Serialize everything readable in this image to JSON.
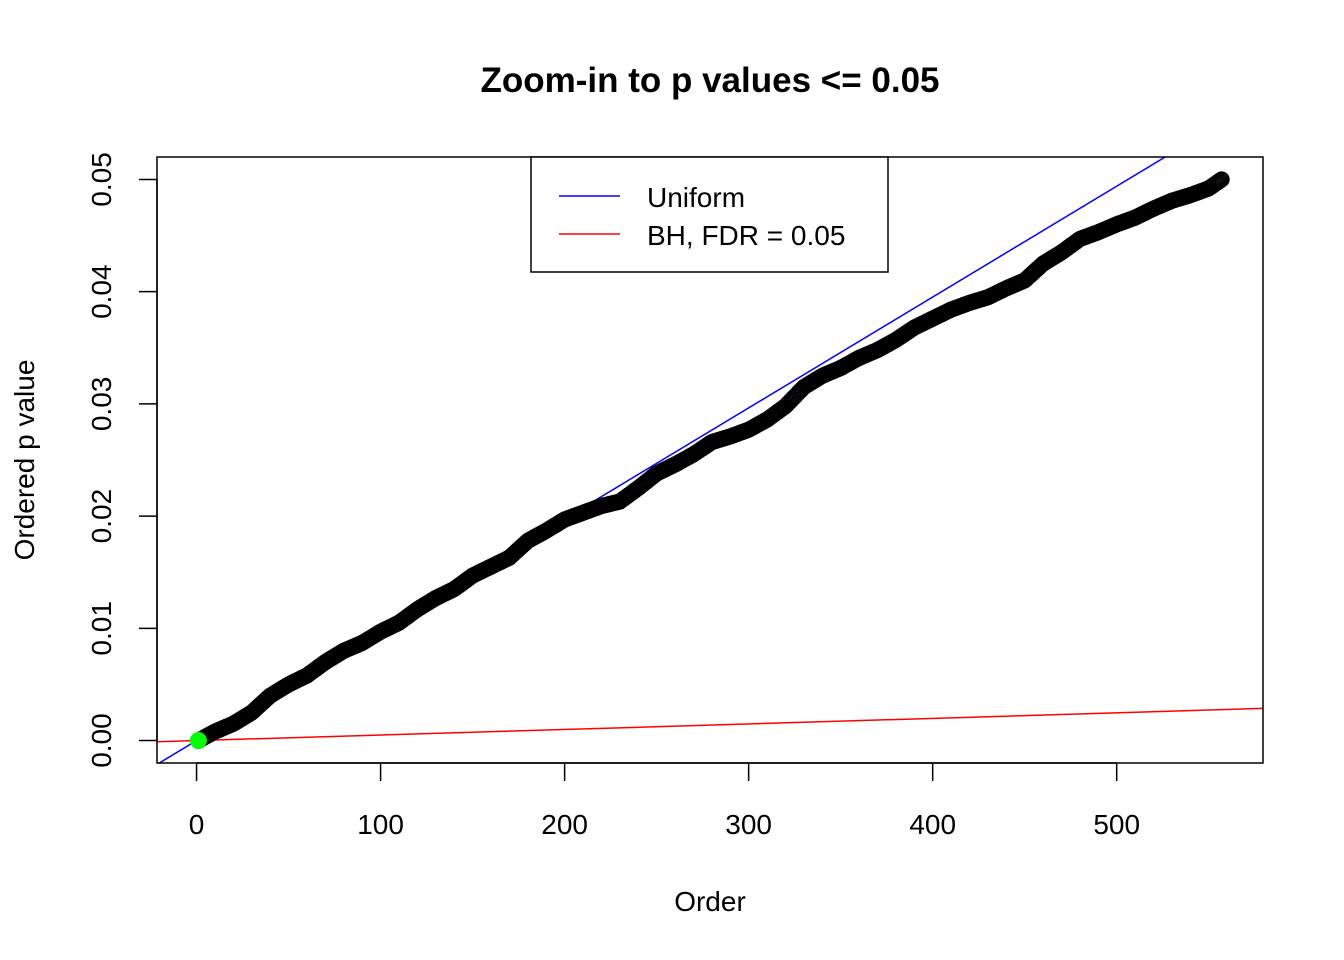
{
  "chart_data": {
    "type": "scatter",
    "title": "Zoom-in to p values <= 0.05",
    "xlabel": "Order",
    "ylabel": "Ordered p value",
    "xlim": [
      -21.5,
      579.5
    ],
    "ylim": [
      -0.002,
      0.052
    ],
    "x_ticks": [
      0,
      100,
      200,
      300,
      400,
      500
    ],
    "x_tick_labels": [
      "0",
      "100",
      "200",
      "300",
      "400",
      "500"
    ],
    "y_ticks": [
      0.0,
      0.01,
      0.02,
      0.03,
      0.04,
      0.05
    ],
    "y_tick_labels": [
      "0.00",
      "0.01",
      "0.02",
      "0.03",
      "0.04",
      "0.05"
    ],
    "grid": false,
    "legend": {
      "position": "top-center",
      "entries": [
        {
          "label": "Uniform",
          "color": "#0000ff"
        },
        {
          "label": "BH, FDR = 0.05",
          "color": "#ff0000"
        }
      ]
    },
    "series": [
      {
        "type": "scatter",
        "marker": "open-circle",
        "color": "#000000",
        "n_points": 557,
        "anchors": [
          [
            1,
            0.0
          ],
          [
            10,
            0.0008
          ],
          [
            20,
            0.0015
          ],
          [
            30,
            0.0025
          ],
          [
            40,
            0.004
          ],
          [
            50,
            0.005
          ],
          [
            60,
            0.0058
          ],
          [
            70,
            0.007
          ],
          [
            80,
            0.008
          ],
          [
            90,
            0.0087
          ],
          [
            100,
            0.0097
          ],
          [
            110,
            0.0105
          ],
          [
            120,
            0.0117
          ],
          [
            130,
            0.0127
          ],
          [
            140,
            0.0135
          ],
          [
            150,
            0.0147
          ],
          [
            160,
            0.0155
          ],
          [
            170,
            0.0163
          ],
          [
            180,
            0.0178
          ],
          [
            190,
            0.0187
          ],
          [
            200,
            0.0197
          ],
          [
            210,
            0.0203
          ],
          [
            220,
            0.0209
          ],
          [
            230,
            0.0213
          ],
          [
            240,
            0.0225
          ],
          [
            250,
            0.0238
          ],
          [
            260,
            0.0246
          ],
          [
            270,
            0.0255
          ],
          [
            280,
            0.0266
          ],
          [
            290,
            0.0271
          ],
          [
            300,
            0.0277
          ],
          [
            310,
            0.0286
          ],
          [
            320,
            0.0298
          ],
          [
            330,
            0.0315
          ],
          [
            340,
            0.0325
          ],
          [
            350,
            0.0332
          ],
          [
            360,
            0.0341
          ],
          [
            370,
            0.0348
          ],
          [
            380,
            0.0357
          ],
          [
            390,
            0.0368
          ],
          [
            400,
            0.0376
          ],
          [
            410,
            0.0384
          ],
          [
            420,
            0.039
          ],
          [
            430,
            0.0395
          ],
          [
            440,
            0.0403
          ],
          [
            450,
            0.041
          ],
          [
            460,
            0.0425
          ],
          [
            470,
            0.0435
          ],
          [
            480,
            0.0447
          ],
          [
            490,
            0.0453
          ],
          [
            500,
            0.046
          ],
          [
            510,
            0.0466
          ],
          [
            520,
            0.0474
          ],
          [
            530,
            0.0481
          ],
          [
            540,
            0.0486
          ],
          [
            550,
            0.0492
          ],
          [
            557,
            0.05
          ]
        ]
      },
      {
        "type": "scatter",
        "marker": "filled-circle",
        "color": "#00ff00",
        "points": [
          [
            1,
            0.0
          ]
        ]
      },
      {
        "name": "Uniform",
        "type": "line",
        "color": "#0000ff",
        "intercept": 0.0,
        "slope": 9.88e-05
      },
      {
        "name": "BH, FDR = 0.05",
        "type": "line",
        "color": "#ff0000",
        "intercept": 0.0,
        "slope": 4.94e-06
      }
    ]
  }
}
